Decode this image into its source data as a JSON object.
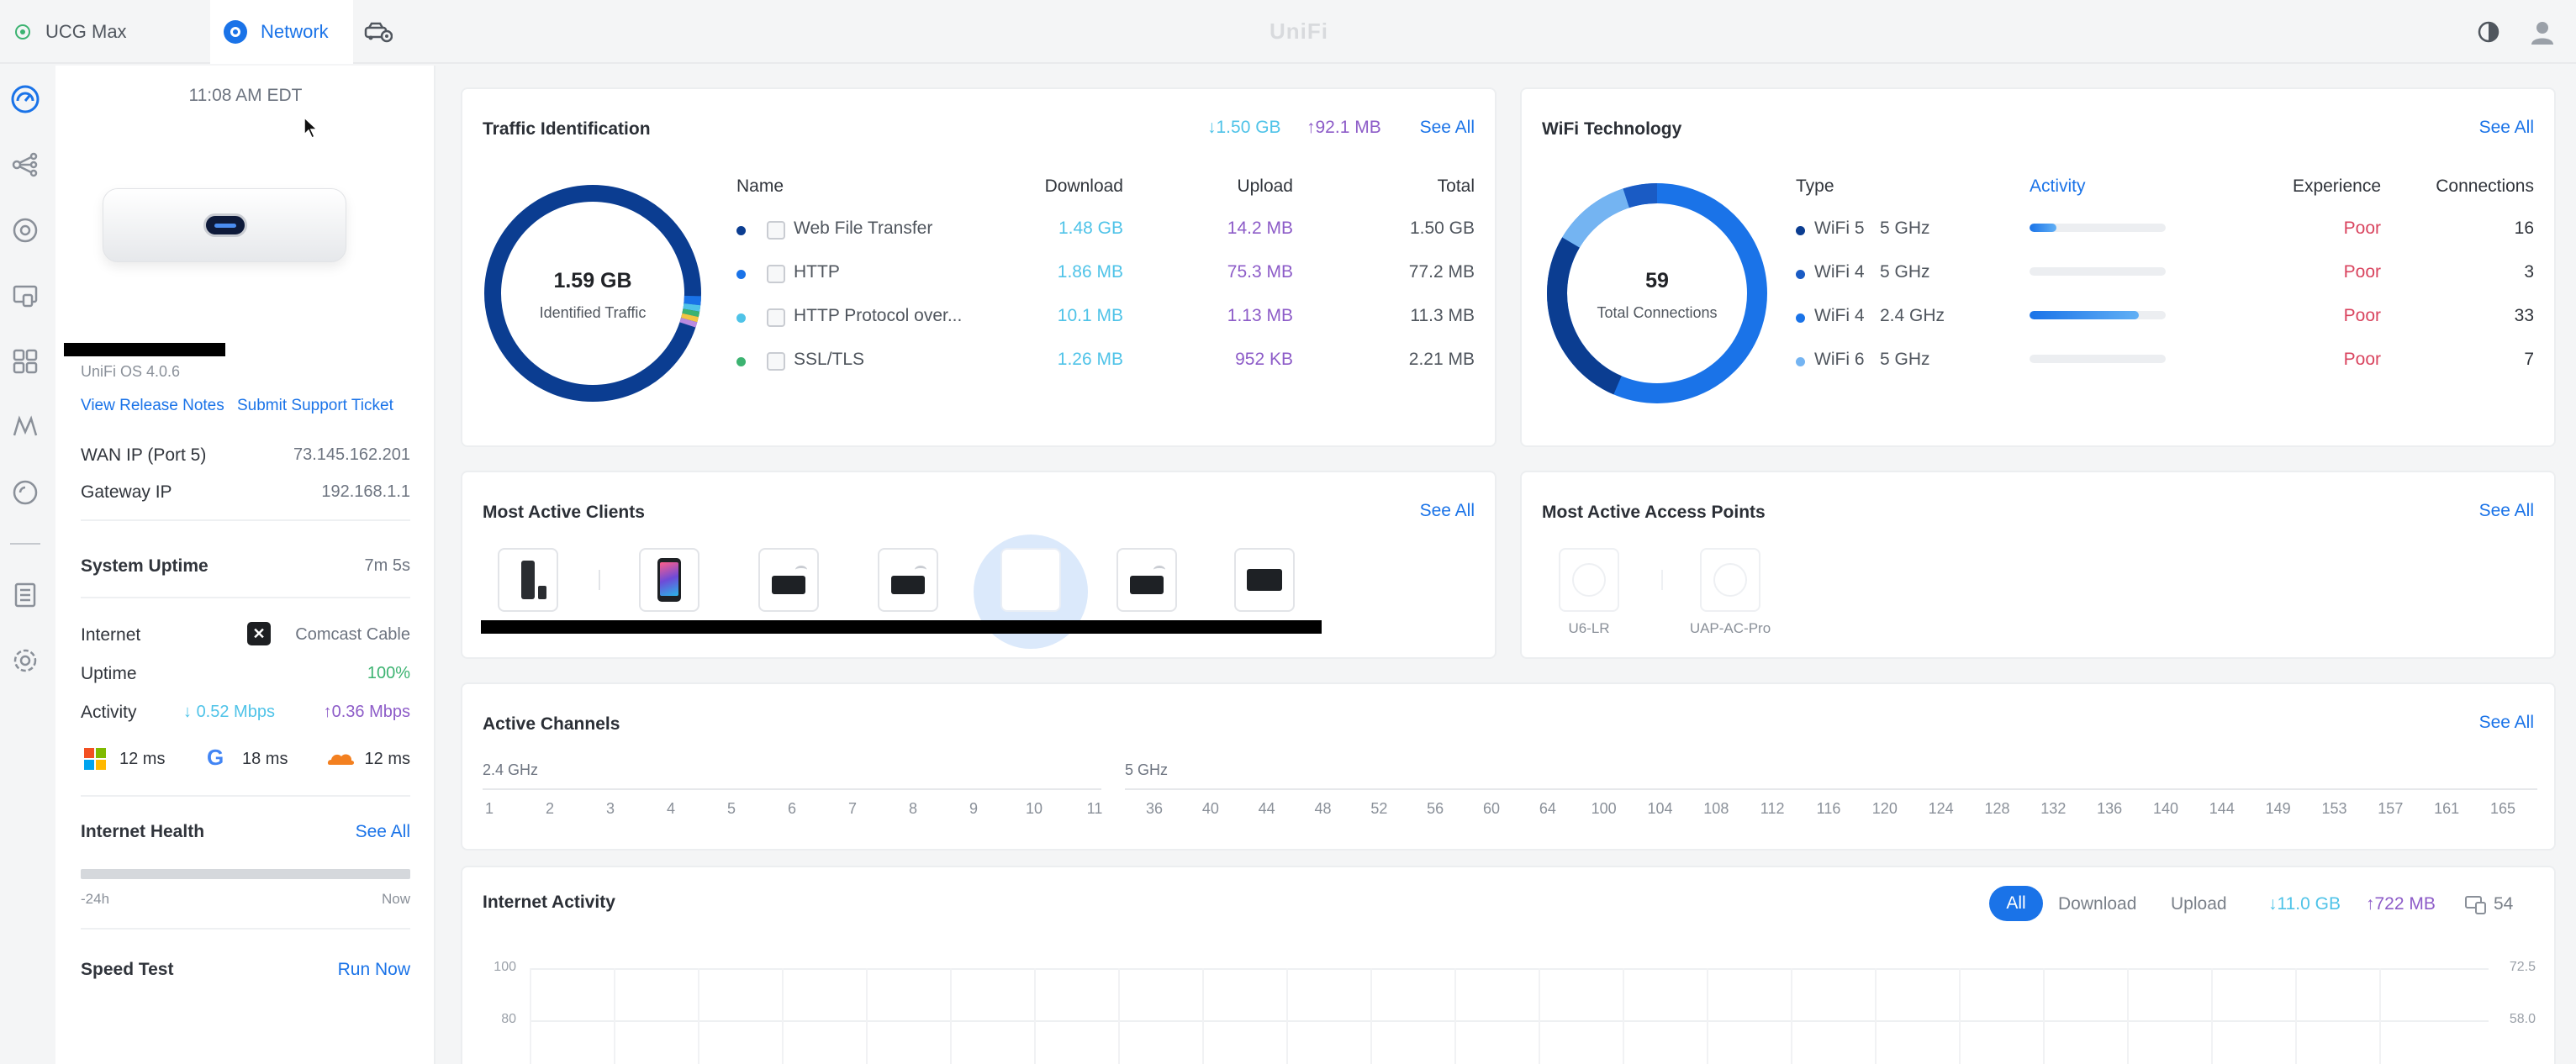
{
  "topbar": {
    "tabs": [
      {
        "label": "UCG Max"
      },
      {
        "label": "Network"
      }
    ],
    "brand": "UniFi"
  },
  "device": {
    "time": "11:08 AM EDT",
    "os": "UniFi OS 4.0.6",
    "release_notes": "View Release Notes",
    "support_ticket": "Submit Support Ticket",
    "wan_ip_label": "WAN IP (Port 5)",
    "wan_ip": "73.145.162.201",
    "gateway_label": "Gateway IP",
    "gateway_ip": "192.168.1.1",
    "uptime_label": "System Uptime",
    "uptime": "7m 5s",
    "internet_label": "Internet",
    "isp": "Comcast Cable",
    "inet_uptime_label": "Uptime",
    "inet_uptime": "100%",
    "activity_label": "Activity",
    "activity_down": "0.52 Mbps",
    "activity_up": "0.36 Mbps",
    "latencies": [
      {
        "icon": "microsoft-icon",
        "value": "12 ms"
      },
      {
        "icon": "google-icon",
        "value": "18 ms"
      },
      {
        "icon": "cloudflare-icon",
        "value": "12 ms"
      }
    ],
    "health_title": "Internet Health",
    "health_see_all": "See All",
    "health_start": "-24h",
    "health_end": "Now",
    "speedtest_title": "Speed Test",
    "speedtest_action": "Run Now"
  },
  "traffic": {
    "title": "Traffic Identification",
    "down_total": "1.50 GB",
    "up_total": "92.1 MB",
    "see_all": "See All",
    "donut_value": "1.59 GB",
    "donut_label": "Identified Traffic",
    "headers": [
      "Name",
      "Download",
      "Upload",
      "Total"
    ],
    "rows": [
      {
        "name": "Web File Transfer",
        "download": "1.48 GB",
        "upload": "14.2 MB",
        "total": "1.50 GB",
        "color": "#0b3d91",
        "icon": "file-transfer-icon"
      },
      {
        "name": "HTTP",
        "download": "1.86 MB",
        "upload": "75.3 MB",
        "total": "77.2 MB",
        "color": "#1a73e8",
        "icon": "globe-icon"
      },
      {
        "name": "HTTP Protocol over...",
        "download": "10.1 MB",
        "upload": "1.13 MB",
        "total": "11.3 MB",
        "color": "#4fc3e8",
        "icon": "lock-icon"
      },
      {
        "name": "SSL/TLS",
        "download": "1.26 MB",
        "upload": "952 KB",
        "total": "2.21 MB",
        "color": "#3cb371",
        "icon": "shield-icon"
      }
    ]
  },
  "wifi": {
    "title": "WiFi Technology",
    "see_all": "See All",
    "donut_value": "59",
    "donut_label": "Total Connections",
    "headers": [
      "Type",
      "Activity",
      "Experience",
      "Connections"
    ],
    "rows": [
      {
        "type": "WiFi 5",
        "band": "5 GHz",
        "activity": 0.2,
        "experience": "Poor",
        "connections": "16",
        "color": "#0b3d91"
      },
      {
        "type": "WiFi 4",
        "band": "5 GHz",
        "activity": 0.0,
        "experience": "Poor",
        "connections": "3",
        "color": "#1a5bc4"
      },
      {
        "type": "WiFi 4",
        "band": "2.4 GHz",
        "activity": 0.8,
        "experience": "Poor",
        "connections": "33",
        "color": "#1a73e8"
      },
      {
        "type": "WiFi 6",
        "band": "5 GHz",
        "activity": 0.0,
        "experience": "Poor",
        "connections": "7",
        "color": "#74b4f2"
      }
    ]
  },
  "clients": {
    "title": "Most Active Clients",
    "see_all": "See All"
  },
  "aps": {
    "title": "Most Active Access Points",
    "see_all": "See All",
    "items": [
      {
        "name": "U6-LR"
      },
      {
        "name": "UAP-AC-Pro"
      }
    ]
  },
  "channels": {
    "title": "Active Channels",
    "see_all": "See All",
    "band24_label": "2.4 GHz",
    "band5_label": "5 GHz",
    "band24": [
      "1",
      "2",
      "3",
      "4",
      "5",
      "6",
      "7",
      "8",
      "9",
      "10",
      "11"
    ],
    "band5": [
      "36",
      "40",
      "44",
      "48",
      "52",
      "56",
      "60",
      "64",
      "100",
      "104",
      "108",
      "112",
      "116",
      "120",
      "124",
      "128",
      "132",
      "136",
      "140",
      "144",
      "149",
      "153",
      "157",
      "161",
      "165"
    ]
  },
  "internet_activity": {
    "title": "Internet Activity",
    "filters": [
      "All",
      "Download",
      "Upload"
    ],
    "down_total": "11.0 GB",
    "up_total": "722 MB",
    "clients": "54",
    "y_left": [
      "100",
      "80"
    ],
    "y_right": [
      "72.5",
      "58.0"
    ]
  }
}
